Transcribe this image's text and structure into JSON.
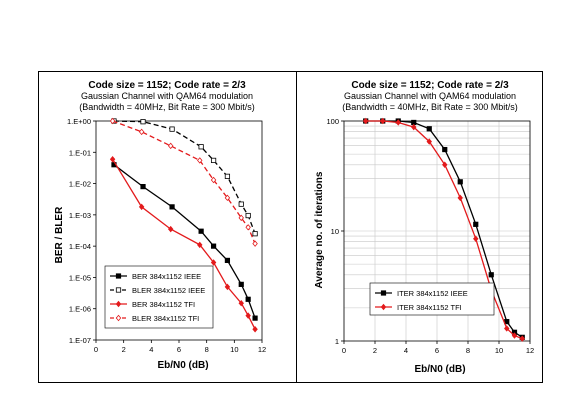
{
  "colors": {
    "ieee": "#000000",
    "tfi": "#e31a1c"
  },
  "chart_data": [
    {
      "type": "line",
      "title": "Code size = 1152;  Code rate = 2/3",
      "subtitle1": "Gaussian Channel with QAM64 modulation",
      "subtitle2": "(Bandwidth = 40MHz,  Bit Rate = 300 Mbit/s)",
      "xlabel": "Eb/N0 (dB)",
      "ylabel": "BER / BLER",
      "xlim": [
        0,
        12
      ],
      "ylim": [
        1e-07,
        1
      ],
      "yscale": "log",
      "x_ticks": [
        "0",
        "2",
        "4",
        "6",
        "8",
        "10",
        "12"
      ],
      "y_ticks": [
        "1.E+00",
        "1.E-01",
        "1.E-02",
        "1.E-03",
        "1.E-04",
        "1.E-05",
        "1.E-06",
        "1.E-07"
      ],
      "legend_position": "bottom-left",
      "series": [
        {
          "name": "BER 384x1152 IEEE",
          "color": "ieee",
          "dash": "solid",
          "marker": "square-filled",
          "x": [
            1.3,
            3.4,
            5.5,
            7.6,
            8.5,
            9.5,
            10.5,
            11.0,
            11.5
          ],
          "y": [
            0.04,
            0.008,
            0.0018,
            0.0003,
            0.0001,
            3.5e-05,
            6e-06,
            2e-06,
            5e-07
          ]
        },
        {
          "name": "BLER 384x1152 IEEE",
          "color": "ieee",
          "dash": "dashed",
          "marker": "square-open",
          "x": [
            1.3,
            3.4,
            5.5,
            7.6,
            8.5,
            9.5,
            10.5,
            11.0,
            11.5
          ],
          "y": [
            1.0,
            0.95,
            0.55,
            0.15,
            0.055,
            0.017,
            0.0022,
            0.00095,
            0.00025
          ]
        },
        {
          "name": "BER 384x1152 TFI",
          "color": "tfi",
          "dash": "solid",
          "marker": "diamond-filled",
          "x": [
            1.2,
            3.3,
            5.4,
            7.5,
            8.5,
            9.5,
            10.5,
            11.0,
            11.5
          ],
          "y": [
            0.06,
            0.0018,
            0.00035,
            0.00011,
            3e-05,
            5e-06,
            1.5e-06,
            6e-07,
            2.2e-07
          ]
        },
        {
          "name": "BLER 384x1152 TFI",
          "color": "tfi",
          "dash": "dashed",
          "marker": "diamond-open",
          "x": [
            1.2,
            3.3,
            5.4,
            7.5,
            8.5,
            9.5,
            10.5,
            11.0,
            11.5
          ],
          "y": [
            1.0,
            0.45,
            0.16,
            0.055,
            0.013,
            0.0035,
            0.0008,
            0.0004,
            0.00012
          ]
        }
      ]
    },
    {
      "type": "line",
      "title": "Code size = 1152;  Code rate = 2/3",
      "subtitle1": "Gaussian Channel with QAM64 modulation",
      "subtitle2": "(Bandwidth = 40MHz,  Bit Rate = 300 Mbit/s)",
      "xlabel": "Eb/N0 (dB)",
      "ylabel": "Average no. of iterations",
      "xlim": [
        0,
        12
      ],
      "ylim": [
        1,
        100
      ],
      "yscale": "log",
      "x_ticks": [
        "0",
        "2",
        "4",
        "6",
        "8",
        "10",
        "12"
      ],
      "y_ticks": [
        "100",
        "10",
        "1"
      ],
      "legend_position": "bottom-left",
      "series": [
        {
          "name": "ITER 384x1152 IEEE",
          "color": "ieee",
          "dash": "solid",
          "marker": "square-filled",
          "x": [
            1.4,
            2.5,
            3.5,
            4.5,
            5.5,
            6.5,
            7.5,
            8.5,
            9.5,
            10.5,
            11.0,
            11.5
          ],
          "y": [
            100,
            100,
            100,
            97,
            85,
            55,
            28,
            11.5,
            4.0,
            1.5,
            1.2,
            1.08
          ]
        },
        {
          "name": "ITER 384x1152 TFI",
          "color": "tfi",
          "dash": "solid",
          "marker": "diamond-filled",
          "x": [
            1.4,
            2.5,
            3.5,
            4.5,
            5.5,
            6.5,
            7.5,
            8.5,
            9.5,
            10.5,
            11.0,
            11.5
          ],
          "y": [
            100,
            100,
            97,
            88,
            65,
            40,
            20,
            8.5,
            2.9,
            1.3,
            1.12,
            1.05
          ]
        }
      ]
    }
  ]
}
